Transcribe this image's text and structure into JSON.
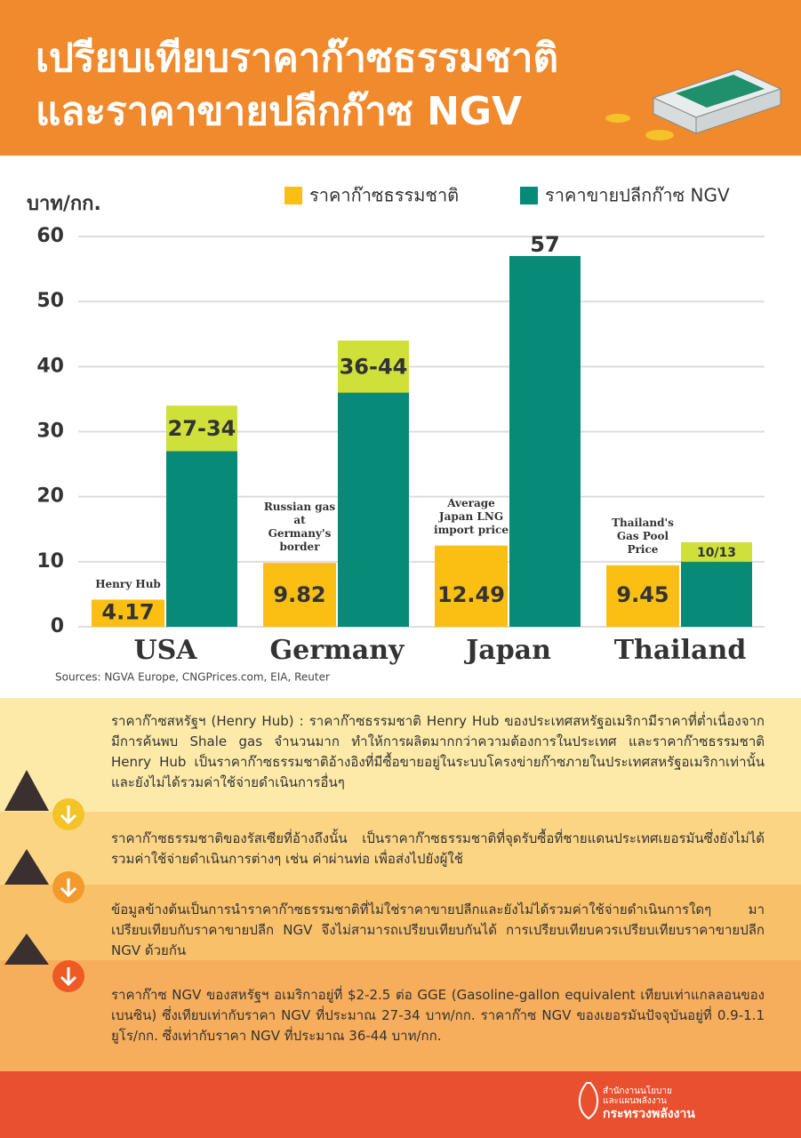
{
  "header": {
    "title": [
      "เปรียบเทียบราคาก๊าซธรรมชาติ",
      "และราคาขายปลีกก๊าซ NGV"
    ]
  },
  "chart_data": {
    "type": "bar",
    "y_label": "บาท/กก.",
    "categories": [
      "USA",
      "Germany",
      "Japan",
      "Thailand"
    ],
    "annotations": [
      "Henry Hub",
      "Russian gas at Germany's border",
      "Average Japan LNG import price",
      "Thailand's Gas Pool Price"
    ],
    "series": [
      {
        "name": "ราคาก๊าซธรรมชาติ",
        "color": "#fbbf14",
        "values": [
          4.17,
          9.82,
          12.49,
          9.45
        ]
      },
      {
        "name": "ราคาขายปลีกก๊าซ NGV",
        "color": "#078a78",
        "range_color": "#cfe03a",
        "values": [
          27,
          36,
          57,
          10
        ],
        "upper": [
          34,
          44,
          null,
          13
        ],
        "value_labels": [
          "27-34",
          "36-44",
          "57",
          "10/13"
        ]
      }
    ],
    "ylim": [
      0,
      60
    ],
    "yticks": [
      0,
      10,
      20,
      30,
      40,
      50,
      60
    ],
    "grid": true,
    "source": "Sources: NGVA Europe, CNGPrices.com, EIA, Reuter"
  },
  "notes": [
    "ราคาก๊าซสหรัฐฯ (Henry Hub) : ราคาก๊าซธรรมชาติ Henry Hub ของประเทศสหรัฐอเมริกามีราคาที่ต่ำเนื่องจากมีการค้นพบ Shale gas จำนวนมาก ทำให้การผลิตมากกว่าความต้องการในประเทศ และราคาก๊าซธรรมชาติ Henry Hub เป็นราคาก๊าซธรรมชาติอ้างอิงที่มีซื้อขายอยู่ในระบบโครงข่ายก๊าซภายในประเทศสหรัฐอเมริกาเท่านั้น และยังไม่ได้รวมค่าใช้จ่ายดำเนินการอื่นๆ",
    "ราคาก๊าซธรรมชาติของรัสเซียที่อ้างถึงนั้น เป็นราคาก๊าซธรรมชาติที่จุดรับซื้อที่ชายแดนประเทศเยอรมันซึ่งยังไม่ได้รวมค่าใช้จ่ายดำเนินการต่างๆ เช่น ค่าผ่านท่อ เพื่อส่งไปยังผู้ใช้",
    "ข้อมูลข้างต้นเป็นการนำราคาก๊าซธรรมชาติที่ไม่ใช่ราคาขายปลีกและยังไม่ได้รวมค่าใช้จ่ายดำเนินการใดๆ มาเปรียบเทียบกับราคาขายปลีก NGV จึงไม่สามารถเปรียบเทียบกันได้ การเปรียบเทียบควรเปรียบเทียบราคาขายปลีก NGV ด้วยกัน",
    "ราคาก๊าซ NGV ของสหรัฐฯ อเมริกาอยู่ที่ $2-2.5 ต่อ GGE (Gasoline-gallon equivalent เทียบเท่าแกลลอนของเบนซิน) ซึ่งเทียบเท่ากับราคา NGV ที่ประมาณ 27-34 บาท/กก. ราคาก๊าซ NGV ของเยอรมันปัจจุบันอยู่ที่ 0.9-1.1 ยูโร/กก. ซึ่งเท่ากับราคา NGV ที่ประมาณ 36-44 บาท/กก."
  ],
  "footer": {
    "org": [
      "สำนักงานนโยบาย",
      "และแผนพลังงาน",
      "กระทรวงพลังงาน"
    ]
  }
}
